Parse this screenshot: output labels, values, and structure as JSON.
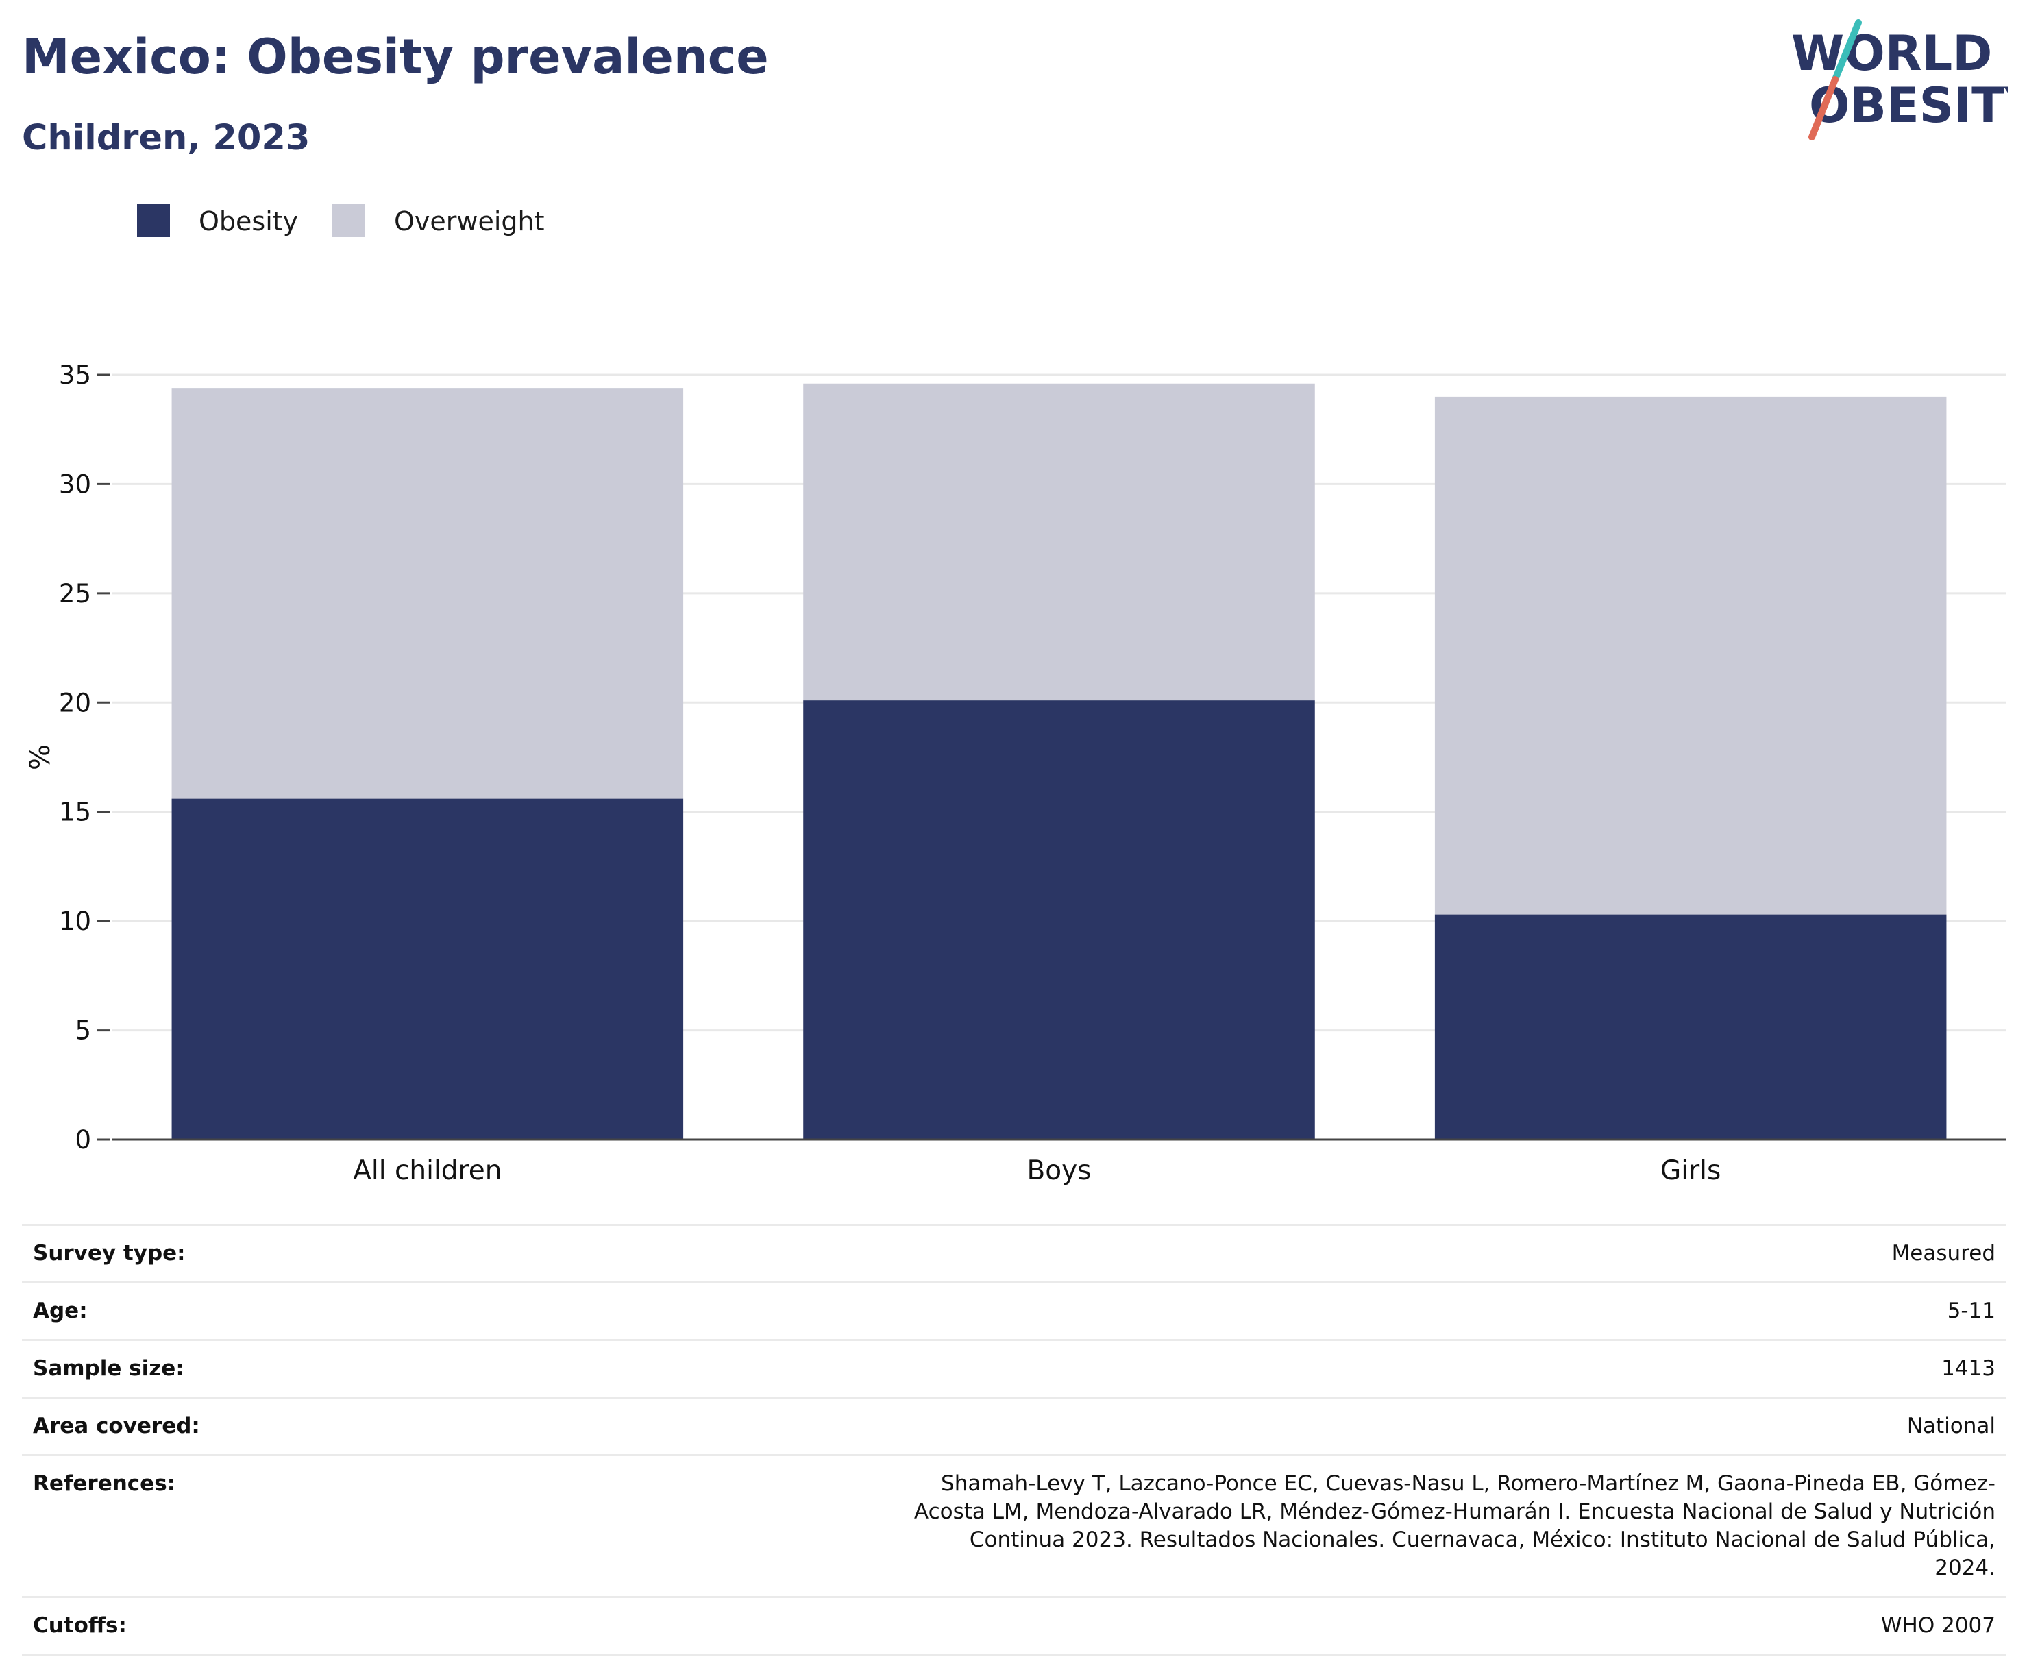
{
  "header": {
    "title": "Mexico: Obesity prevalence",
    "subtitle": "Children, 2023"
  },
  "logo": {
    "line1": "WORLD",
    "line2": "OBESITY",
    "colors": {
      "text": "#2b3664",
      "slash_top": "#3bbdb9",
      "slash_bottom": "#e06a56"
    }
  },
  "legend": {
    "items": [
      {
        "label": "Obesity",
        "color": "#2b3664"
      },
      {
        "label": "Overweight",
        "color": "#cacbd7"
      }
    ]
  },
  "chart_data": {
    "type": "bar",
    "stacked": true,
    "categories": [
      "All children",
      "Boys",
      "Girls"
    ],
    "series": [
      {
        "name": "Obesity",
        "values": [
          15.6,
          20.1,
          10.3
        ],
        "color": "#2b3664"
      },
      {
        "name": "Overweight",
        "values": [
          18.8,
          14.5,
          23.7
        ],
        "color": "#cacbd7"
      }
    ],
    "ylabel": "%",
    "xlabel": "",
    "ylim": [
      0,
      35
    ],
    "yticks": [
      0,
      5,
      10,
      15,
      20,
      25,
      30,
      35
    ],
    "grid": true,
    "legend_position": "top-left"
  },
  "info": {
    "rows": [
      {
        "key": "Survey type:",
        "value": "Measured"
      },
      {
        "key": "Age:",
        "value": "5-11"
      },
      {
        "key": "Sample size:",
        "value": "1413"
      },
      {
        "key": "Area covered:",
        "value": "National"
      },
      {
        "key": "References:",
        "value": "Shamah-Levy T, Lazcano-Ponce EC, Cuevas-Nasu L, Romero-Martínez M, Gaona-Pineda EB, Gómez-Acosta LM, Mendoza-Alvarado LR, Méndez-Gómez-Humarán I. Encuesta Nacional de Salud y Nutrición Continua 2023. Resultados Nacionales. Cuernavaca, México: Instituto Nacional de Salud Pública, 2024."
      },
      {
        "key": "Cutoffs:",
        "value": "WHO 2007"
      }
    ]
  }
}
